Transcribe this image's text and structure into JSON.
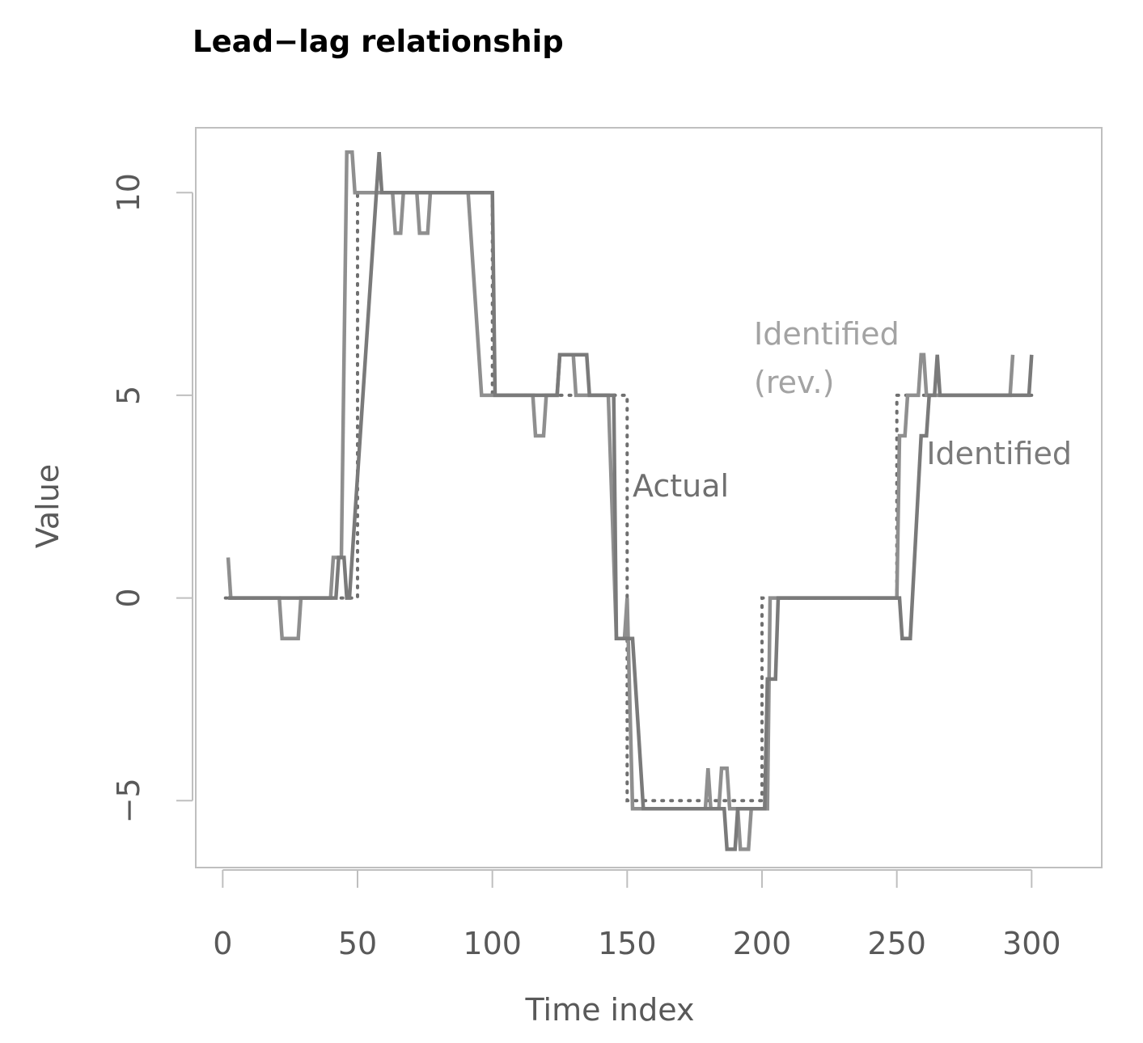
{
  "chart_data": {
    "type": "line",
    "title": "Lead−lag relationship",
    "xlabel": "Time index",
    "ylabel": "Value",
    "xlim": [
      -10,
      326
    ],
    "ylim": [
      -6.65,
      11.6
    ],
    "x_ticks": [
      0,
      50,
      100,
      150,
      200,
      250,
      300
    ],
    "x_tick_labels": [
      "0",
      "50",
      "100",
      "150",
      "200",
      "250",
      "300"
    ],
    "y_ticks": [
      -5,
      0,
      5,
      10
    ],
    "y_tick_labels": [
      "−5",
      "0",
      "5",
      "10"
    ],
    "grid": false,
    "legend": "none",
    "series": [
      {
        "name": "Actual",
        "style": "dotted",
        "color": "#6f6f6f",
        "points": [
          [
            1,
            0
          ],
          [
            50,
            0
          ],
          [
            50,
            10
          ],
          [
            100,
            10
          ],
          [
            100,
            5
          ],
          [
            150,
            5
          ],
          [
            150,
            -5
          ],
          [
            200,
            -5
          ],
          [
            200,
            0
          ],
          [
            250,
            0
          ],
          [
            250,
            5
          ],
          [
            300,
            5
          ]
        ]
      },
      {
        "name": "Identified (rev.)",
        "style": "solid",
        "color": "#8f8f8f",
        "points": [
          [
            2,
            1
          ],
          [
            3,
            0
          ],
          [
            21,
            0
          ],
          [
            22,
            -1
          ],
          [
            28,
            -1
          ],
          [
            29,
            0
          ],
          [
            40,
            0
          ],
          [
            41,
            1
          ],
          [
            44,
            1
          ],
          [
            46,
            11
          ],
          [
            48,
            11
          ],
          [
            49,
            10
          ],
          [
            63,
            10
          ],
          [
            64,
            9
          ],
          [
            66,
            9
          ],
          [
            67,
            10
          ],
          [
            72,
            10
          ],
          [
            73,
            9
          ],
          [
            76,
            9
          ],
          [
            77,
            10
          ],
          [
            91,
            10
          ],
          [
            96,
            5
          ],
          [
            115,
            5
          ],
          [
            116,
            4
          ],
          [
            119,
            4
          ],
          [
            120,
            5
          ],
          [
            124,
            5
          ],
          [
            125,
            6
          ],
          [
            130,
            6
          ],
          [
            131,
            5
          ],
          [
            143,
            5
          ],
          [
            146,
            -1
          ],
          [
            149,
            -1
          ],
          [
            150,
            0
          ],
          [
            152,
            -5.2
          ],
          [
            179,
            -5.2
          ],
          [
            180,
            -4.2
          ],
          [
            181,
            -5.2
          ],
          [
            184,
            -5.2
          ],
          [
            185,
            -4.2
          ],
          [
            187,
            -4.2
          ],
          [
            188,
            -5.2
          ],
          [
            191,
            -5.2
          ],
          [
            192,
            -6.2
          ],
          [
            195,
            -6.2
          ],
          [
            196,
            -5.2
          ],
          [
            202,
            -5.2
          ],
          [
            203,
            0
          ],
          [
            250,
            0
          ],
          [
            251,
            4
          ],
          [
            253,
            4
          ],
          [
            254,
            5
          ],
          [
            258,
            5
          ],
          [
            259,
            6
          ],
          [
            260,
            6
          ],
          [
            261,
            5
          ],
          [
            292,
            5
          ],
          [
            293,
            6
          ]
        ]
      },
      {
        "name": "Identified",
        "style": "solid",
        "color": "#7a7a7a",
        "points": [
          [
            2,
            0
          ],
          [
            20,
            0
          ],
          [
            21,
            0
          ],
          [
            42,
            0
          ],
          [
            43,
            1
          ],
          [
            45,
            1
          ],
          [
            46,
            0
          ],
          [
            47,
            0
          ],
          [
            57,
            10
          ],
          [
            58,
            11
          ],
          [
            59,
            10
          ],
          [
            100,
            10
          ],
          [
            101,
            5
          ],
          [
            124,
            5
          ],
          [
            125,
            6
          ],
          [
            135,
            6
          ],
          [
            136,
            5
          ],
          [
            145,
            5
          ],
          [
            146,
            -1
          ],
          [
            152,
            -1
          ],
          [
            156,
            -5.2
          ],
          [
            186,
            -5.2
          ],
          [
            187,
            -6.2
          ],
          [
            190,
            -6.2
          ],
          [
            191,
            -5.2
          ],
          [
            201,
            -5.2
          ],
          [
            202,
            -2
          ],
          [
            205,
            -2
          ],
          [
            206,
            0
          ],
          [
            251,
            0
          ],
          [
            252,
            -1
          ],
          [
            255,
            -1
          ],
          [
            259,
            4
          ],
          [
            261,
            4
          ],
          [
            262,
            5
          ],
          [
            264,
            5
          ],
          [
            265,
            6
          ],
          [
            266,
            5
          ],
          [
            299,
            5
          ],
          [
            300,
            6
          ]
        ]
      }
    ],
    "annotations": [
      {
        "lines": [
          "Actual"
        ],
        "x": 152,
        "y": 2.5,
        "color": "#6f6f6f"
      },
      {
        "lines": [
          "Identified",
          "(rev.)"
        ],
        "x": 197,
        "y": 6.25,
        "color": "#a3a3a3"
      },
      {
        "lines": [
          "Identified"
        ],
        "x": 261,
        "y": 3.3,
        "color": "#7a7a7a"
      }
    ]
  }
}
